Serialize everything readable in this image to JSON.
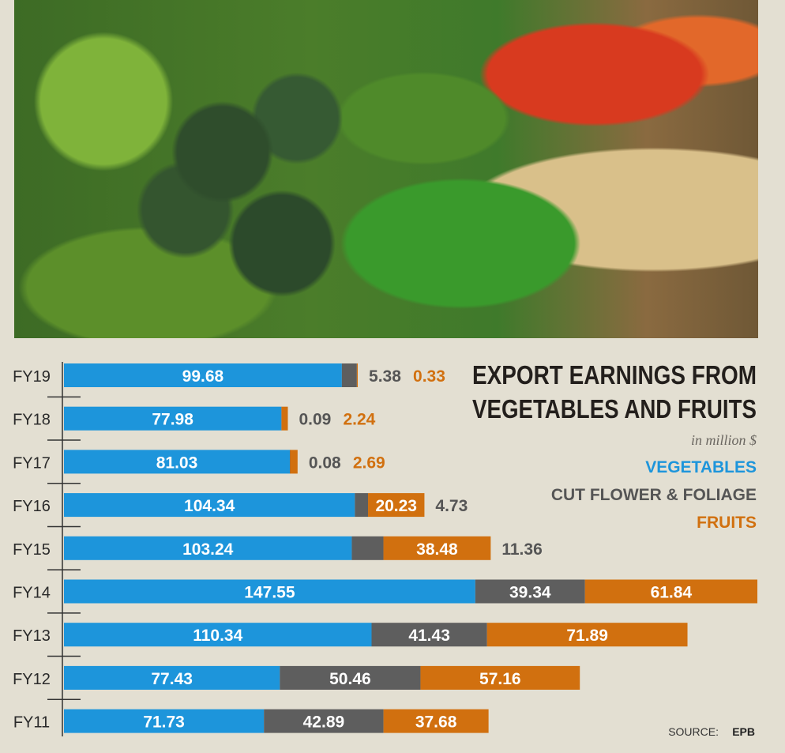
{
  "chart_data": {
    "type": "bar",
    "orientation": "horizontal",
    "stacked": true,
    "title": "EXPORT EARNINGS FROM VEGETABLES AND FRUITS",
    "subtitle": "in million $",
    "categories": [
      "FY19",
      "FY18",
      "FY17",
      "FY16",
      "FY15",
      "FY14",
      "FY13",
      "FY12",
      "FY11"
    ],
    "series": [
      {
        "name": "VEGETABLES",
        "color": "#1d95db",
        "values": [
          99.68,
          77.98,
          81.03,
          104.34,
          103.24,
          147.55,
          110.34,
          77.43,
          71.73
        ]
      },
      {
        "name": "CUT FLOWER & FOLIAGE",
        "color": "#5e5e5e",
        "values": [
          5.38,
          0.09,
          0.08,
          4.73,
          11.36,
          39.34,
          41.43,
          50.46,
          42.89
        ]
      },
      {
        "name": "FRUITS",
        "color": "#d1700f",
        "values": [
          0.33,
          2.24,
          2.69,
          20.23,
          38.48,
          61.84,
          71.89,
          57.16,
          37.68
        ]
      }
    ],
    "legend_placement": "right",
    "source_label": "SOURCE:",
    "source": "EPB",
    "grid": false
  },
  "photo": {
    "description_icon": "vegetables-photo"
  }
}
